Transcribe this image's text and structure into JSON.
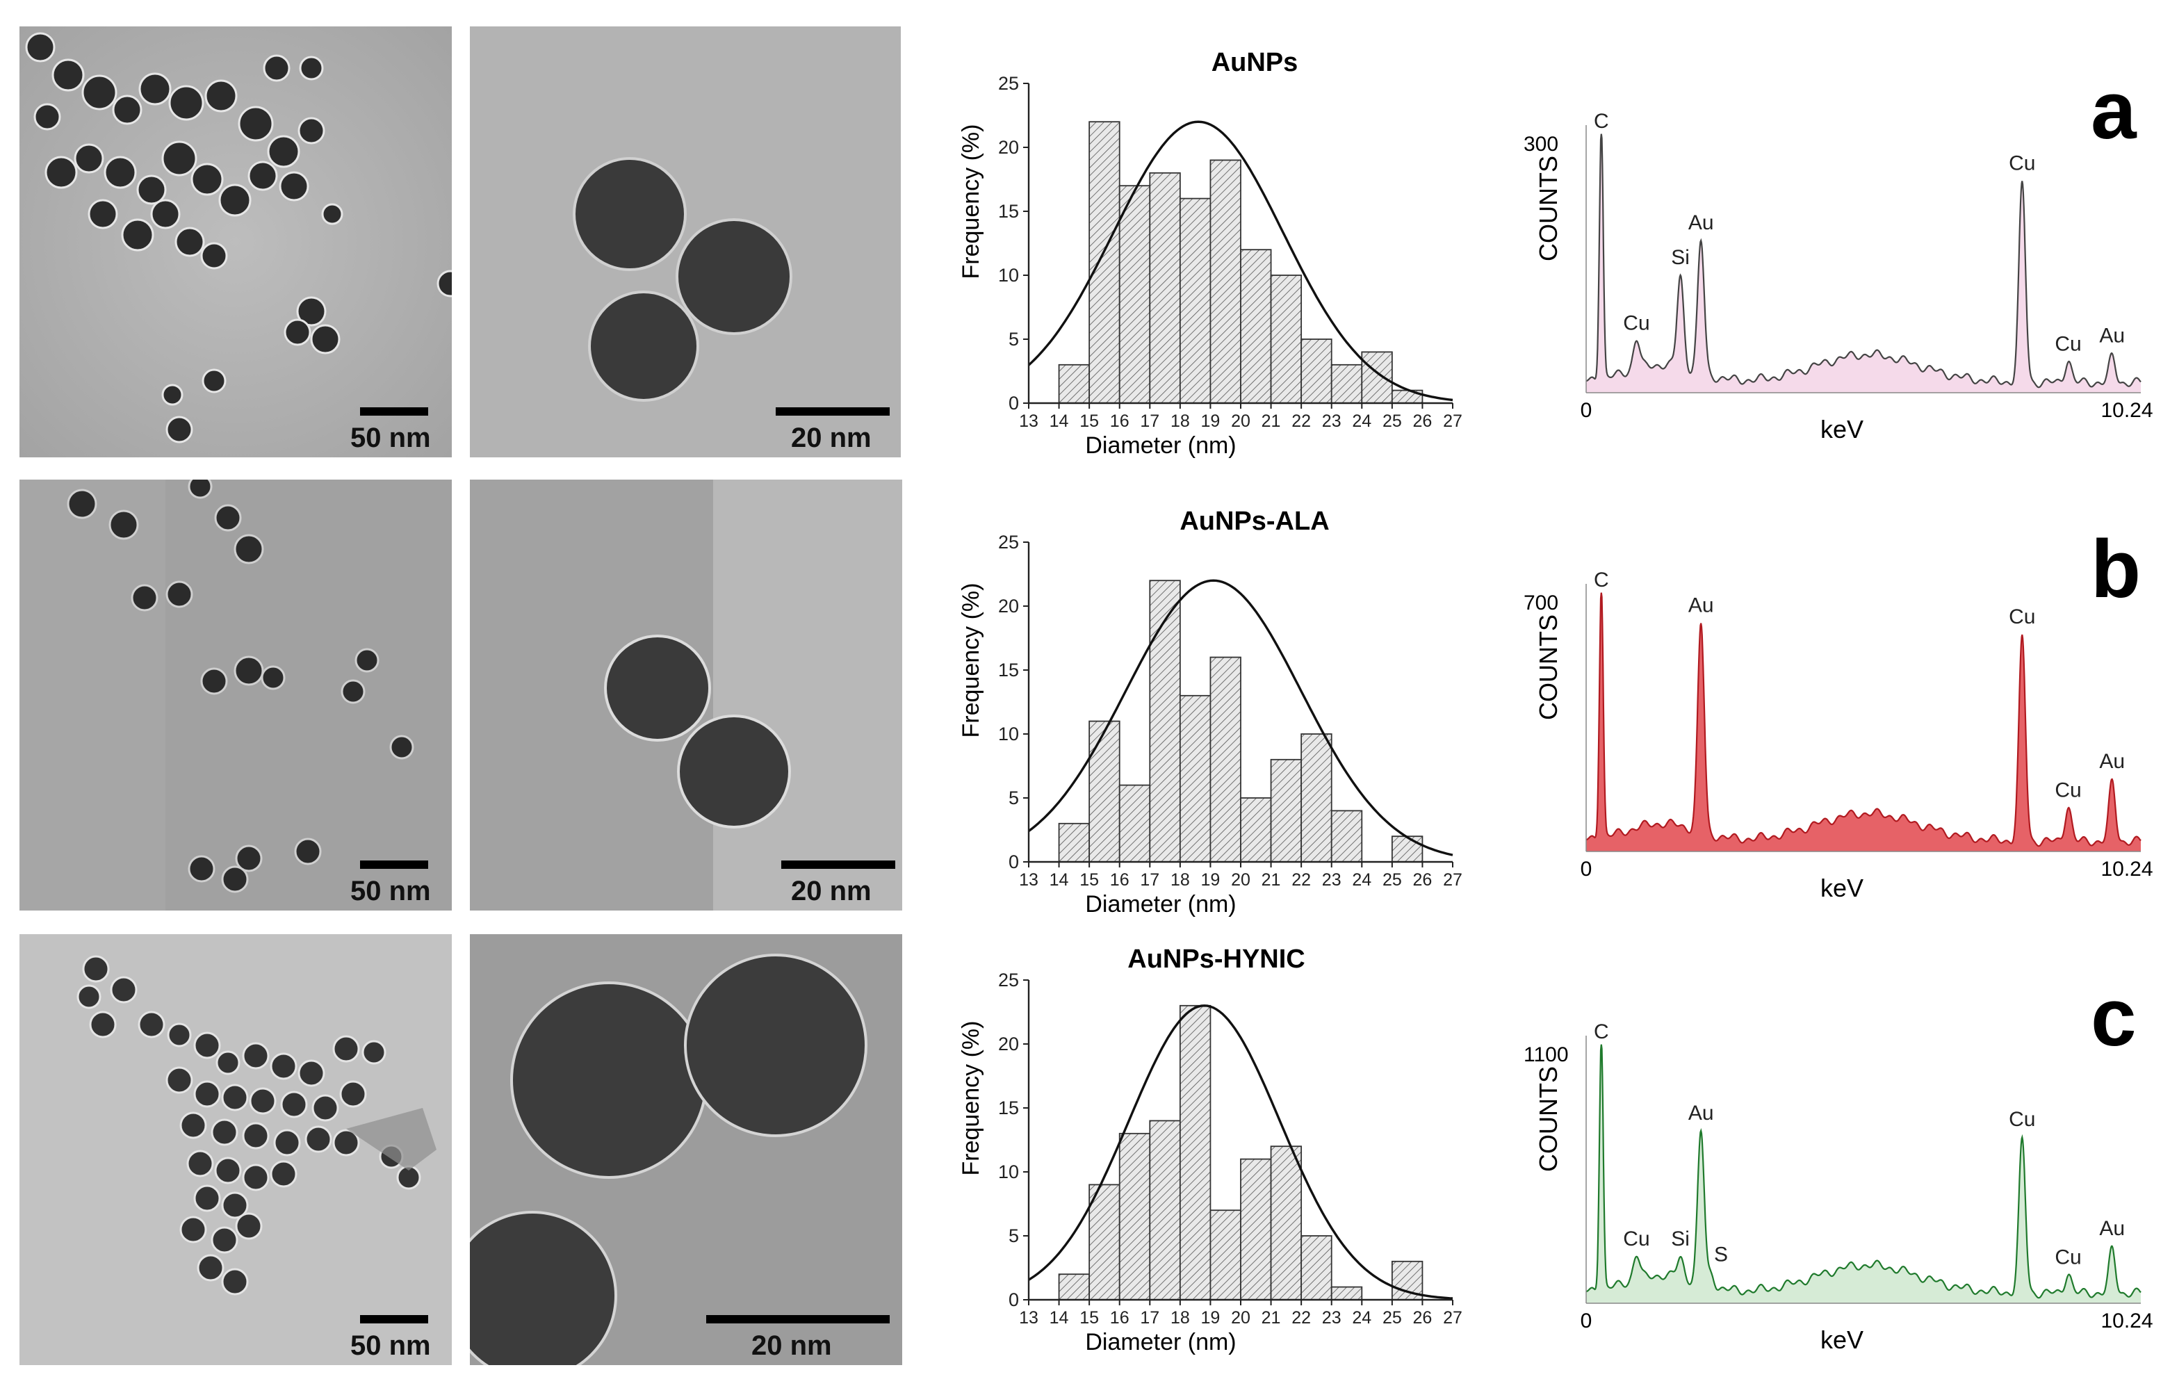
{
  "figure": {
    "rows": [
      {
        "letter": "a",
        "tem_low_scale": "50 nm",
        "tem_high_scale": "20 nm",
        "histogram": {
          "title": "AuNPs",
          "xlabel": "Diameter (nm)",
          "ylabel": "Frequency (%)"
        },
        "eds": {
          "ymax_label": "300",
          "ylabel": "COUNTS",
          "xlabel": "keV",
          "x0_label": "0",
          "x1_label": "10.24",
          "peaks": [
            "C",
            "Cu",
            "Si",
            "Au",
            "Cu",
            "Cu",
            "Au"
          ]
        }
      },
      {
        "letter": "b",
        "tem_low_scale": "50 nm",
        "tem_high_scale": "20 nm",
        "histogram": {
          "title": "AuNPs-ALA",
          "xlabel": "Diameter (nm)",
          "ylabel": "Frequency (%)"
        },
        "eds": {
          "ymax_label": "700",
          "ylabel": "COUNTS",
          "xlabel": "keV",
          "x0_label": "0",
          "x1_label": "10.24",
          "peaks": [
            "C",
            "Au",
            "Cu",
            "Cu",
            "Au"
          ]
        }
      },
      {
        "letter": "c",
        "tem_low_scale": "50 nm",
        "tem_high_scale": "20 nm",
        "histogram": {
          "title": "AuNPs-HYNIC",
          "xlabel": "Diameter (nm)",
          "ylabel": "Frequency (%)"
        },
        "eds": {
          "ymax_label": "1100",
          "ylabel": "COUNTS",
          "xlabel": "keV",
          "x0_label": "0",
          "x1_label": "10.24",
          "peaks": [
            "C",
            "Cu",
            "Si",
            "S",
            "Au",
            "Cu",
            "Cu",
            "Au"
          ]
        }
      }
    ]
  },
  "chart_data": [
    {
      "type": "bar",
      "title": "AuNPs",
      "xlabel": "Diameter (nm)",
      "ylabel": "Frequency (%)",
      "xlim": [
        13,
        27
      ],
      "ylim": [
        0,
        25
      ],
      "xticks": [
        "13",
        "14",
        "15",
        "16",
        "17",
        "18",
        "19",
        "20",
        "21",
        "22",
        "23",
        "24",
        "25",
        "26",
        "27"
      ],
      "yticks": [
        "0",
        "5",
        "10",
        "15",
        "20",
        "25"
      ],
      "bins": [
        14,
        15,
        16,
        17,
        18,
        19,
        20,
        21,
        22,
        23,
        24,
        25
      ],
      "values": [
        3,
        22,
        17,
        18,
        16,
        19,
        12,
        10,
        5,
        3,
        4,
        1
      ],
      "fit": {
        "type": "gaussian",
        "mean": 18.6,
        "sd": 2.8,
        "peak": 22
      }
    },
    {
      "type": "bar",
      "title": "AuNPs-ALA",
      "xlabel": "Diameter (nm)",
      "ylabel": "Frequency (%)",
      "xlim": [
        13,
        27
      ],
      "ylim": [
        0,
        25
      ],
      "xticks": [
        "13",
        "14",
        "15",
        "16",
        "17",
        "18",
        "19",
        "20",
        "21",
        "22",
        "23",
        "24",
        "25",
        "26",
        "27"
      ],
      "yticks": [
        "0",
        "5",
        "10",
        "15",
        "20",
        "25"
      ],
      "bins": [
        14,
        15,
        16,
        17,
        18,
        19,
        20,
        21,
        22,
        23,
        24,
        25
      ],
      "values": [
        3,
        11,
        6,
        22,
        13,
        16,
        5,
        8,
        10,
        4,
        0,
        2
      ],
      "fit": {
        "type": "gaussian",
        "mean": 19.1,
        "sd": 2.9,
        "peak": 22
      }
    },
    {
      "type": "bar",
      "title": "AuNPs-HYNIC",
      "xlabel": "Diameter (nm)",
      "ylabel": "Frequency (%)",
      "xlim": [
        13,
        27
      ],
      "ylim": [
        0,
        25
      ],
      "xticks": [
        "13",
        "14",
        "15",
        "16",
        "17",
        "18",
        "19",
        "20",
        "21",
        "22",
        "23",
        "24",
        "25",
        "26",
        "27"
      ],
      "yticks": [
        "0",
        "5",
        "10",
        "15",
        "20",
        "25"
      ],
      "bins": [
        14,
        15,
        16,
        17,
        18,
        19,
        20,
        21,
        22,
        23,
        24,
        25
      ],
      "values": [
        2,
        9,
        13,
        14,
        23,
        7,
        11,
        12,
        5,
        1,
        0,
        3
      ],
      "fit": {
        "type": "gaussian",
        "mean": 18.8,
        "sd": 2.5,
        "peak": 23
      }
    },
    {
      "type": "area",
      "ylabel": "COUNTS",
      "xlabel": "keV",
      "xlim": [
        0,
        10.24
      ],
      "ymax_label": 300,
      "color": "#f3d3e6",
      "line_color": "#444444",
      "peaks": [
        {
          "label": "C",
          "x": 0.28,
          "h": 1.0
        },
        {
          "label": "Cu",
          "x": 0.93,
          "h": 0.12
        },
        {
          "label": "Si",
          "x": 1.74,
          "h": 0.36
        },
        {
          "label": "Au",
          "x": 2.12,
          "h": 0.52
        },
        {
          "label": "Cu",
          "x": 8.05,
          "h": 0.78
        },
        {
          "label": "Cu",
          "x": 8.9,
          "h": 0.09
        },
        {
          "label": "Au",
          "x": 9.71,
          "h": 0.1
        }
      ]
    },
    {
      "type": "area",
      "ylabel": "COUNTS",
      "xlabel": "keV",
      "xlim": [
        0,
        10.24
      ],
      "ymax_label": 700,
      "color": "#e2474c",
      "line_color": "#b11a20",
      "peaks": [
        {
          "label": "C",
          "x": 0.28,
          "h": 1.0
        },
        {
          "label": "Au",
          "x": 2.12,
          "h": 0.82
        },
        {
          "label": "Cu",
          "x": 8.05,
          "h": 0.8
        },
        {
          "label": "Cu",
          "x": 8.9,
          "h": 0.14
        },
        {
          "label": "Au",
          "x": 9.71,
          "h": 0.23
        }
      ]
    },
    {
      "type": "area",
      "ylabel": "COUNTS",
      "xlabel": "keV",
      "xlim": [
        0,
        10.24
      ],
      "ymax_label": 1100,
      "color": "#cfe8cf",
      "line_color": "#1f7a2c",
      "peaks": [
        {
          "label": "C",
          "x": 0.28,
          "h": 1.0
        },
        {
          "label": "Cu",
          "x": 0.93,
          "h": 0.1
        },
        {
          "label": "Si",
          "x": 1.74,
          "h": 0.08
        },
        {
          "label": "S",
          "x": 2.31,
          "h": 0.05
        },
        {
          "label": "Au",
          "x": 2.12,
          "h": 0.6
        },
        {
          "label": "Cu",
          "x": 8.05,
          "h": 0.6
        },
        {
          "label": "Cu",
          "x": 8.9,
          "h": 0.08
        },
        {
          "label": "Au",
          "x": 9.71,
          "h": 0.17
        }
      ]
    }
  ]
}
